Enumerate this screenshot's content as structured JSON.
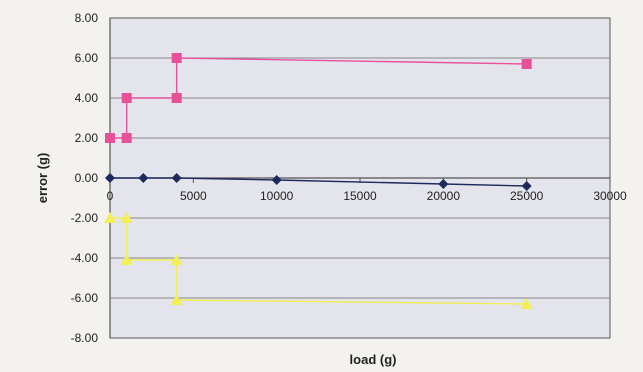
{
  "chart_data": {
    "type": "line",
    "title": "",
    "xlabel": "load (g)",
    "ylabel": "error (g)",
    "xlim": [
      0,
      30000
    ],
    "ylim": [
      -8,
      8
    ],
    "x_ticks": [
      "0",
      "5000",
      "10000",
      "15000",
      "20000",
      "25000",
      "30000"
    ],
    "y_ticks": [
      "8.00",
      "6.00",
      "4.00",
      "2.00",
      "0.00",
      "-2.00",
      "-4.00",
      "-6.00",
      "-8.00"
    ],
    "grid": true,
    "legend": "none",
    "series": [
      {
        "color": "#e8509a",
        "marker": "square",
        "points": [
          [
            0,
            2
          ],
          [
            1000,
            2
          ],
          [
            1000,
            4
          ],
          [
            4000,
            4
          ],
          [
            4000,
            6
          ],
          [
            25000,
            5.7
          ]
        ]
      },
      {
        "color": "#1e2a5c",
        "marker": "diamond",
        "points": [
          [
            0,
            0
          ],
          [
            2000,
            0
          ],
          [
            4000,
            0
          ],
          [
            10000,
            -0.1
          ],
          [
            20000,
            -0.3
          ],
          [
            25000,
            -0.4
          ]
        ]
      },
      {
        "color": "#f2ee55",
        "marker": "triangle",
        "points": [
          [
            0,
            -2
          ],
          [
            1000,
            -2
          ],
          [
            1000,
            -4.1
          ],
          [
            4000,
            -4.1
          ],
          [
            4000,
            -6.1
          ],
          [
            25000,
            -6.3
          ]
        ]
      }
    ]
  },
  "colors": {
    "plot_background": "#e4e4ec",
    "grid": "#888888",
    "axis": "#555555"
  }
}
